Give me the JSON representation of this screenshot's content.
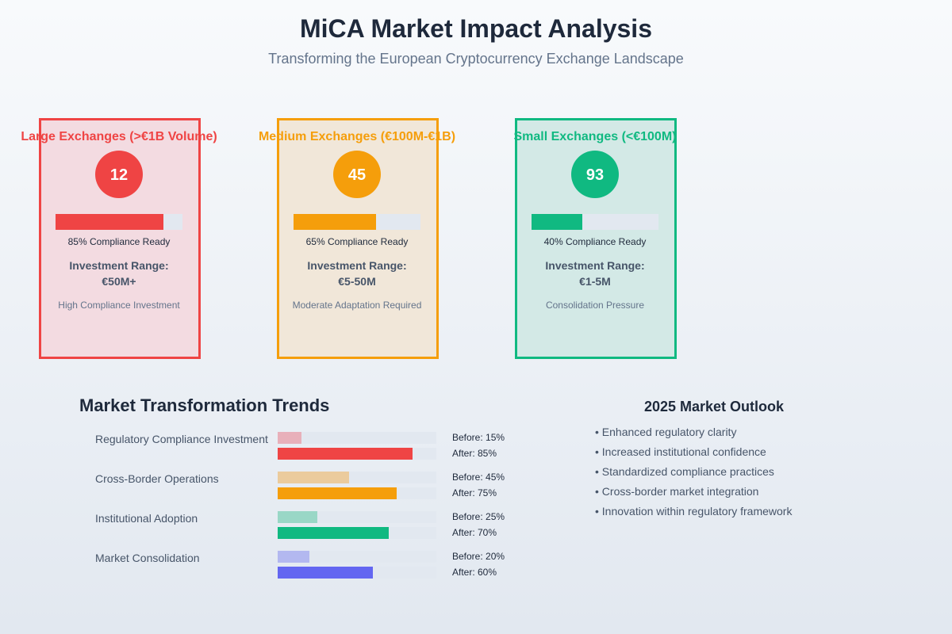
{
  "header": {
    "title": "MiCA Market Impact Analysis",
    "subtitle": "Transforming the European Cryptocurrency Exchange Landscape"
  },
  "segments": [
    {
      "title": "Large Exchanges (>€1B Volume)",
      "count": "12",
      "compliance_ready": 85,
      "compliance_label": "85% Compliance Ready",
      "investment_label": "Investment Range:",
      "investment_value": "€50M+",
      "description": "High Compliance Investment",
      "color": "#ef4444",
      "bg": "#f3dbe1"
    },
    {
      "title": "Medium Exchanges (€100M-€1B)",
      "count": "45",
      "compliance_ready": 65,
      "compliance_label": "65% Compliance Ready",
      "investment_label": "Investment Range:",
      "investment_value": "€5-50M",
      "description": "Moderate Adaptation Required",
      "color": "#f59e0b",
      "bg": "#f1e7d9"
    },
    {
      "title": "Small Exchanges (<€100M)",
      "count": "93",
      "compliance_ready": 40,
      "compliance_label": "40% Compliance Ready",
      "investment_label": "Investment Range:",
      "investment_value": "€1-5M",
      "description": "Consolidation Pressure",
      "color": "#10b981",
      "bg": "#d3e9e6"
    }
  ],
  "trends": {
    "title": "Market Transformation Trends",
    "max": 100,
    "metrics": [
      {
        "label": "Regulatory Compliance Investment",
        "before": 15,
        "after": 85,
        "before_label": "Before: 15%",
        "after_label": "After: 85%",
        "color": "#ef4444",
        "light": "#e8b0ba"
      },
      {
        "label": "Cross-Border Operations",
        "before": 45,
        "after": 75,
        "before_label": "Before: 45%",
        "after_label": "After: 75%",
        "color": "#f59e0b",
        "light": "#ebcb9d"
      },
      {
        "label": "Institutional Adoption",
        "before": 25,
        "after": 70,
        "before_label": "Before: 25%",
        "after_label": "After: 70%",
        "color": "#10b981",
        "light": "#99d7c6"
      },
      {
        "label": "Market Consolidation",
        "before": 20,
        "after": 60,
        "before_label": "Before: 20%",
        "after_label": "After: 60%",
        "color": "#6366f1",
        "light": "#b3b8f0"
      }
    ]
  },
  "outlook": {
    "title": "2025 Market Outlook",
    "items": [
      "• Enhanced regulatory clarity",
      "• Increased institutional confidence",
      "• Standardized compliance practices",
      "• Cross-border market integration",
      "• Innovation within regulatory framework"
    ]
  },
  "chart_data": {
    "type": "bar",
    "title": "Market Transformation Trends",
    "categories": [
      "Regulatory Compliance Investment",
      "Cross-Border Operations",
      "Institutional Adoption",
      "Market Consolidation"
    ],
    "series": [
      {
        "name": "Before",
        "values": [
          15,
          45,
          25,
          20
        ]
      },
      {
        "name": "After",
        "values": [
          85,
          75,
          70,
          60
        ]
      }
    ],
    "ylim": [
      0,
      100
    ],
    "compliance_ready": {
      "categories": [
        "Large Exchanges (>€1B Volume)",
        "Medium Exchanges (€100M-€1B)",
        "Small Exchanges (<€100M)"
      ],
      "values": [
        85,
        65,
        40
      ]
    },
    "exchange_counts": [
      12,
      45,
      93
    ]
  }
}
